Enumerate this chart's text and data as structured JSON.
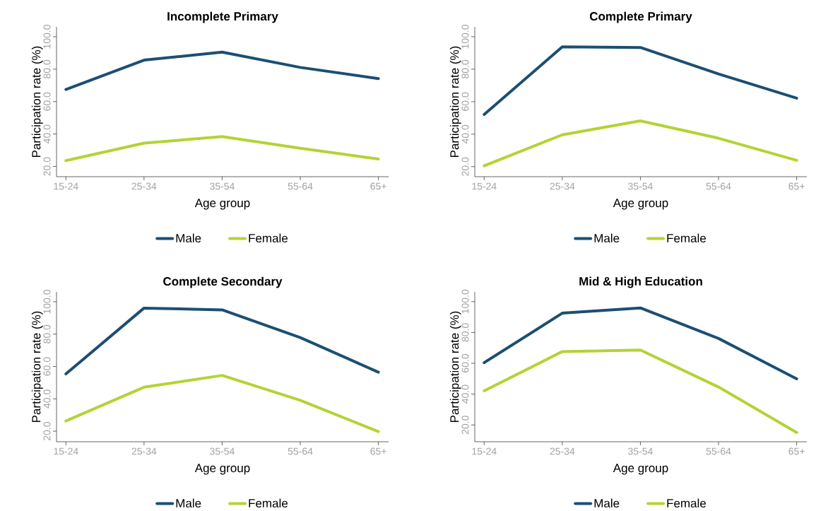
{
  "chart_data": [
    {
      "type": "line",
      "title": "Incomplete Primary",
      "xlabel": "Age group",
      "ylabel": "Participation rate (%)",
      "categories": [
        "15-24",
        "25-34",
        "35-54",
        "55-64",
        "65+"
      ],
      "legend": "bottom",
      "ylim": [
        13.7,
        106.1
      ],
      "yticks": [
        {
          "value": 20,
          "label": "20.0"
        },
        {
          "value": 40,
          "label": "40.0"
        },
        {
          "value": 60,
          "label": "60.0"
        },
        {
          "value": 80,
          "label": "80.0"
        },
        {
          "value": 100,
          "label": "100.0"
        }
      ],
      "series": [
        {
          "name": "Male",
          "color": "#1b4f72",
          "values": [
            67.5,
            85.6,
            90.5,
            81.1,
            74.2
          ]
        },
        {
          "name": "Female",
          "color": "#b3d334",
          "values": [
            23.6,
            34.4,
            38.4,
            31.2,
            24.6
          ]
        }
      ]
    },
    {
      "type": "line",
      "title": "Complete Primary",
      "xlabel": "Age group",
      "ylabel": "Participation rate (%)",
      "categories": [
        "15-24",
        "25-34",
        "35-54",
        "55-64",
        "65+"
      ],
      "legend": "bottom",
      "ylim": [
        13.8,
        106.1
      ],
      "yticks": [
        {
          "value": 20,
          "label": "20.0"
        },
        {
          "value": 40,
          "label": "40.0"
        },
        {
          "value": 60,
          "label": "60.0"
        },
        {
          "value": 80,
          "label": "80.0"
        },
        {
          "value": 100,
          "label": "100.0"
        }
      ],
      "series": [
        {
          "name": "Male",
          "color": "#1b4f72",
          "values": [
            52.1,
            93.8,
            93.4,
            77.1,
            62.2
          ]
        },
        {
          "name": "Female",
          "color": "#b3d334",
          "values": [
            20.5,
            39.6,
            48.2,
            37.5,
            23.9
          ]
        }
      ]
    },
    {
      "type": "line",
      "title": "Complete Secondary",
      "xlabel": "Age group",
      "ylabel": "Participation rate (%)",
      "categories": [
        "15-24",
        "25-34",
        "35-54",
        "55-64",
        "65+"
      ],
      "legend": "bottom",
      "ylim": [
        13.5,
        106.1
      ],
      "yticks": [
        {
          "value": 20,
          "label": "20.0"
        },
        {
          "value": 40,
          "label": "40.0"
        },
        {
          "value": 60,
          "label": "60.0"
        },
        {
          "value": 80,
          "label": "80.0"
        },
        {
          "value": 100,
          "label": "100.0"
        }
      ],
      "series": [
        {
          "name": "Male",
          "color": "#1b4f72",
          "values": [
            55.4,
            96.1,
            95.0,
            77.9,
            56.5
          ]
        },
        {
          "name": "Female",
          "color": "#b3d334",
          "values": [
            26.3,
            47.2,
            54.5,
            39.1,
            19.8
          ]
        }
      ]
    },
    {
      "type": "line",
      "title": "Mid & High Education",
      "xlabel": "Age group",
      "ylabel": "Participation rate (%)",
      "categories": [
        "15-24",
        "25-34",
        "35-54",
        "55-64",
        "65+"
      ],
      "legend": "bottom",
      "ylim": [
        9.1,
        106.3
      ],
      "yticks": [
        {
          "value": 20,
          "label": "20.0"
        },
        {
          "value": 40,
          "label": "40.0"
        },
        {
          "value": 60,
          "label": "60.0"
        },
        {
          "value": 80,
          "label": "80.0"
        },
        {
          "value": 100,
          "label": "100.0"
        }
      ],
      "series": [
        {
          "name": "Male",
          "color": "#1b4f72",
          "values": [
            60.4,
            92.5,
            95.9,
            76.1,
            49.9
          ]
        },
        {
          "name": "Female",
          "color": "#b3d334",
          "values": [
            42.1,
            67.6,
            68.6,
            44.6,
            15.1
          ]
        }
      ]
    }
  ]
}
